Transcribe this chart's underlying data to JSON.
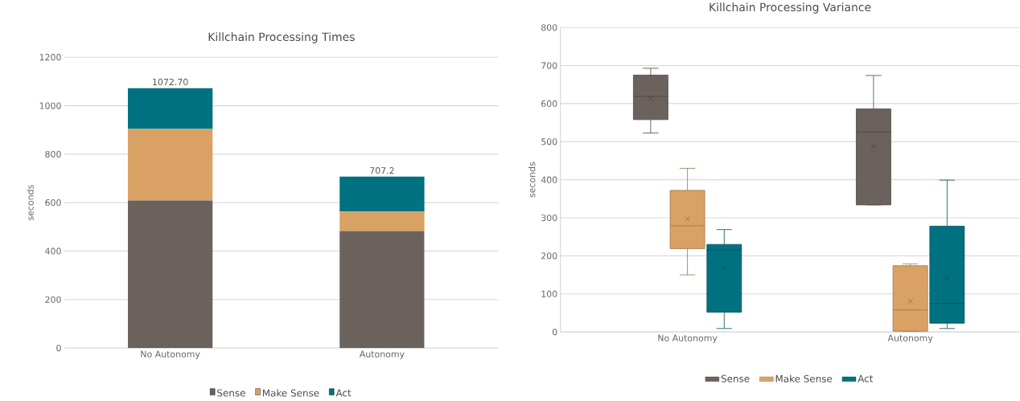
{
  "chart_data": [
    {
      "type": "bar",
      "stacked": true,
      "title": "Killchain Processing Times",
      "ylabel": "seconds",
      "categories": [
        "No Autonomy",
        "Autonomy"
      ],
      "series": [
        {
          "name": "Sense",
          "color": "#6b625d",
          "values": [
            609,
            483
          ]
        },
        {
          "name": "Make Sense",
          "color": "#d9a264",
          "values": [
            295,
            80
          ]
        },
        {
          "name": "Act",
          "color": "#007180",
          "values": [
            168.7,
            144.2
          ]
        }
      ],
      "totals": [
        "1072.70",
        "707.2"
      ],
      "ylim": [
        0,
        1200
      ],
      "yticks": [
        0,
        200,
        400,
        600,
        800,
        1000,
        1200
      ],
      "grid": "y",
      "legend": "bottom"
    },
    {
      "type": "box",
      "title": "Killchain Processing Variance",
      "ylabel": "seconds",
      "categories": [
        "No Autonomy",
        "Autonomy"
      ],
      "series": [
        {
          "name": "Sense",
          "color": "#6b625d",
          "boxes": [
            {
              "low": 523,
              "q1": 558,
              "median": 619,
              "q3": 675,
              "high": 693,
              "mean": 613
            },
            {
              "low": 334,
              "q1": 334,
              "median": 525,
              "q3": 586,
              "high": 674,
              "mean": 488
            }
          ]
        },
        {
          "name": "Make Sense",
          "color": "#d9a264",
          "boxes": [
            {
              "low": 150,
              "q1": 219,
              "median": 279,
              "q3": 372,
              "high": 430,
              "mean": 297
            },
            {
              "low": 2,
              "q1": 2,
              "median": 58,
              "q3": 174,
              "high": 179,
              "mean": 81
            }
          ]
        },
        {
          "name": "Act",
          "color": "#007180",
          "boxes": [
            {
              "low": 9,
              "q1": 52,
              "median": 215,
              "q3": 230,
              "high": 269,
              "mean": 169
            },
            {
              "low": 9,
              "q1": 23,
              "median": 75,
              "q3": 278,
              "high": 399,
              "mean": 142
            }
          ]
        }
      ],
      "ylim": [
        0,
        800
      ],
      "yticks": [
        0,
        100,
        200,
        300,
        400,
        500,
        600,
        700,
        800
      ],
      "grid": "y",
      "legend": "bottom"
    }
  ]
}
